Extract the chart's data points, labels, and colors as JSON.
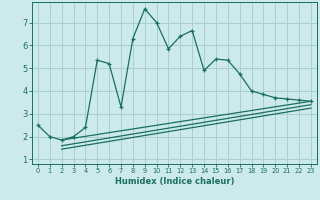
{
  "title": "",
  "xlabel": "Humidex (Indice chaleur)",
  "bg_color": "#cceaea",
  "grid_color": "#aacfcf",
  "line_color": "#1a6e60",
  "xlim": [
    -0.5,
    23.5
  ],
  "ylim": [
    0.8,
    7.9
  ],
  "xticks": [
    0,
    1,
    2,
    3,
    4,
    5,
    6,
    7,
    8,
    9,
    10,
    11,
    12,
    13,
    14,
    15,
    16,
    17,
    18,
    19,
    20,
    21,
    22,
    23
  ],
  "yticks": [
    1,
    2,
    3,
    4,
    5,
    6,
    7
  ],
  "curve1_x": [
    0,
    1,
    2,
    3,
    4,
    5,
    6,
    7,
    8,
    9,
    10,
    11,
    12,
    13,
    14,
    15,
    16,
    17,
    18,
    19,
    20,
    21,
    22,
    23
  ],
  "curve1_y": [
    2.5,
    2.0,
    1.85,
    2.0,
    2.4,
    5.35,
    5.2,
    3.3,
    6.3,
    7.6,
    7.0,
    5.85,
    6.4,
    6.65,
    4.9,
    5.4,
    5.35,
    4.75,
    4.0,
    3.85,
    3.7,
    3.65,
    3.6,
    3.55
  ],
  "line1_x": [
    2,
    23
  ],
  "line1_y": [
    1.85,
    3.55
  ],
  "line2_x": [
    2,
    23
  ],
  "line2_y": [
    1.6,
    3.4
  ],
  "line3_x": [
    2,
    23
  ],
  "line3_y": [
    1.45,
    3.25
  ],
  "xlabel_fontsize": 6.0,
  "tick_fontsize_x": 4.8,
  "tick_fontsize_y": 6.0
}
